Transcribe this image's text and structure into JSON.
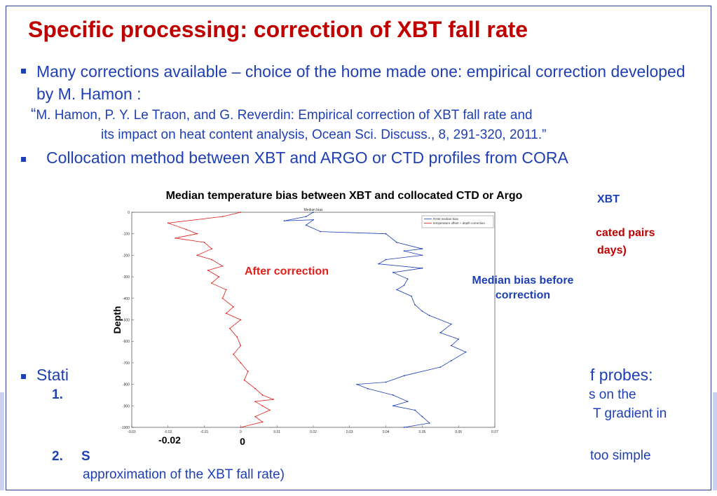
{
  "slide": {
    "title": "Specific processing: correction of XBT fall rate",
    "bullet1": "Many corrections available – choice of the home made one: empirical correction developed by M. Hamon :",
    "ref_open_quote": "“",
    "ref_line1": "M. Hamon, P. Y. Le Traon, and G. Reverdin: Empirical correction of XBT fall rate and",
    "ref_line2": "its impact on heat content analysis, Ocean Sci. Discuss., 8, 291-320, 2011.”",
    "bullet2": "Collocation method between XBT and ARGO or CTD profiles from CORA",
    "bullet3_partial": "Stati",
    "right_fragments": {
      "xbt": "XBT",
      "pairs": "cated pairs",
      "days": "days)",
      "probes": "f probes:",
      "on_the": "s on the",
      "gradient": "T gradient in",
      "too_simple": "too simple"
    },
    "item1_num": "1.",
    "item2_num": "2.",
    "item2_char": "S",
    "item2_tail": "approximation of the XBT fall rate)",
    "colors": {
      "title": "#c00000",
      "text": "#1f3fb4",
      "red": "#e0201b",
      "blue": "#1f3fb4"
    }
  },
  "chart_data": {
    "type": "line",
    "title": "Median temperature bias between XBT and collocated CTD or Argo",
    "inner_title": "Median bias",
    "ylabel": "Depth",
    "xlim": [
      -0.03,
      0.07
    ],
    "ylim": [
      -1000,
      0
    ],
    "xticks": [
      "-0.03",
      "-0.02",
      "-0.01",
      "0",
      "0.01",
      "0.02",
      "0.03",
      "0.04",
      "0.05",
      "0.06",
      "0.07"
    ],
    "yticks": [
      "0",
      "-100",
      "-200",
      "-300",
      "-400",
      "-500",
      "-600",
      "-700",
      "-800",
      "-900",
      "-1000"
    ],
    "big_xlabels": {
      "minus": "-0.02",
      "zero": "0"
    },
    "legend": [
      "RAW median bias",
      "temperature offset + depth correction"
    ],
    "annotations": {
      "after": "After correction",
      "before_l1": "Median bias before",
      "before_l2": "correction"
    },
    "series": [
      {
        "name": "RAW median bias",
        "color": "#1f3fb4",
        "points": [
          [
            0.02,
            0
          ],
          [
            0.018,
            -20
          ],
          [
            0.012,
            -40
          ],
          [
            0.02,
            -35
          ],
          [
            0.018,
            -60
          ],
          [
            0.022,
            -90
          ],
          [
            0.04,
            -100
          ],
          [
            0.043,
            -140
          ],
          [
            0.05,
            -170
          ],
          [
            0.045,
            -180
          ],
          [
            0.05,
            -200
          ],
          [
            0.04,
            -220
          ],
          [
            0.038,
            -240
          ],
          [
            0.05,
            -260
          ],
          [
            0.042,
            -280
          ],
          [
            0.046,
            -310
          ],
          [
            0.045,
            -340
          ],
          [
            0.043,
            -360
          ],
          [
            0.047,
            -390
          ],
          [
            0.048,
            -430
          ],
          [
            0.05,
            -460
          ],
          [
            0.052,
            -480
          ],
          [
            0.058,
            -520
          ],
          [
            0.055,
            -560
          ],
          [
            0.06,
            -590
          ],
          [
            0.058,
            -620
          ],
          [
            0.062,
            -650
          ],
          [
            0.058,
            -690
          ],
          [
            0.055,
            -720
          ],
          [
            0.045,
            -760
          ],
          [
            0.04,
            -790
          ],
          [
            0.032,
            -800
          ],
          [
            0.035,
            -820
          ],
          [
            0.042,
            -850
          ],
          [
            0.046,
            -880
          ],
          [
            0.042,
            -900
          ],
          [
            0.048,
            -920
          ],
          [
            0.05,
            -950
          ],
          [
            0.052,
            -980
          ],
          [
            0.045,
            -1000
          ]
        ]
      },
      {
        "name": "temperature offset + depth correction",
        "color": "#e0201b",
        "points": [
          [
            0,
            0
          ],
          [
            -0.005,
            -20
          ],
          [
            -0.02,
            -50
          ],
          [
            -0.015,
            -80
          ],
          [
            -0.012,
            -100
          ],
          [
            -0.018,
            -120
          ],
          [
            -0.01,
            -140
          ],
          [
            -0.008,
            -170
          ],
          [
            -0.012,
            -200
          ],
          [
            -0.008,
            -220
          ],
          [
            -0.005,
            -250
          ],
          [
            -0.009,
            -270
          ],
          [
            -0.006,
            -300
          ],
          [
            -0.008,
            -330
          ],
          [
            -0.004,
            -360
          ],
          [
            -0.005,
            -400
          ],
          [
            -0.002,
            -440
          ],
          [
            -0.004,
            -470
          ],
          [
            0.0,
            -500
          ],
          [
            -0.003,
            -540
          ],
          [
            -0.001,
            -580
          ],
          [
            0.0,
            -620
          ],
          [
            -0.002,
            -660
          ],
          [
            0.0,
            -700
          ],
          [
            0.002,
            -740
          ],
          [
            0.001,
            -780
          ],
          [
            0.004,
            -820
          ],
          [
            0.006,
            -850
          ],
          [
            0.009,
            -870
          ],
          [
            0.004,
            -880
          ],
          [
            0.006,
            -900
          ],
          [
            0.008,
            -920
          ],
          [
            0.004,
            -950
          ],
          [
            0.006,
            -975
          ],
          [
            0.0,
            -1000
          ]
        ]
      }
    ]
  }
}
